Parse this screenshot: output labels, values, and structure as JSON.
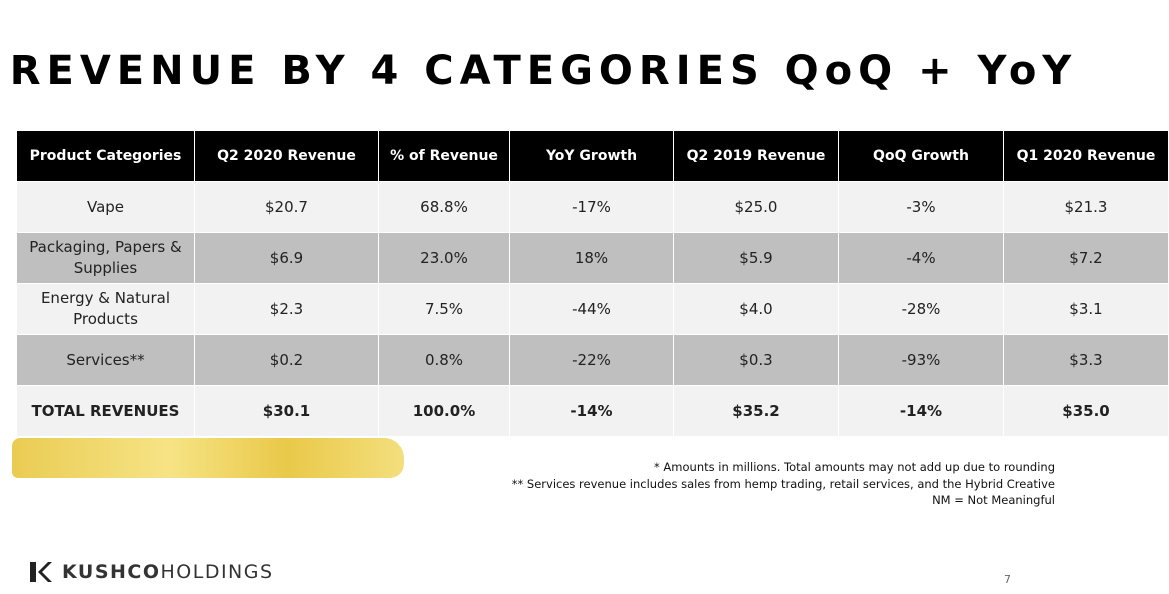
{
  "title": "REVENUE BY 4 CATEGORIES QoQ + YoY",
  "table": {
    "headers": [
      "Product Categories",
      "Q2 2020 Revenue",
      "% of Revenue",
      "YoY Growth",
      "Q2 2019 Revenue",
      "QoQ Growth",
      "Q1 2020 Revenue"
    ],
    "rows": [
      [
        "Vape",
        "$20.7",
        "68.8%",
        "-17%",
        "$25.0",
        "-3%",
        "$21.3"
      ],
      [
        "Packaging, Papers & Supplies",
        "$6.9",
        "23.0%",
        "18%",
        "$5.9",
        "-4%",
        "$7.2"
      ],
      [
        "Energy & Natural Products",
        "$2.3",
        "7.5%",
        "-44%",
        "$4.0",
        "-28%",
        "$3.1"
      ],
      [
        "Services**",
        "$0.2",
        "0.8%",
        "-22%",
        "$0.3",
        "-93%",
        "$3.3"
      ],
      [
        "TOTAL REVENUES",
        "$30.1",
        "100.0%",
        "-14%",
        "$35.2",
        "-14%",
        "$35.0"
      ]
    ]
  },
  "footnotes": [
    "* Amounts in millions. Total amounts may not add up due to rounding",
    "** Services revenue includes sales from hemp trading, retail services, and the Hybrid Creative",
    "NM = Not Meaningful"
  ],
  "logo": {
    "brand": "KUSHCO",
    "suffix": "HOLDINGS"
  },
  "page_number": "7"
}
